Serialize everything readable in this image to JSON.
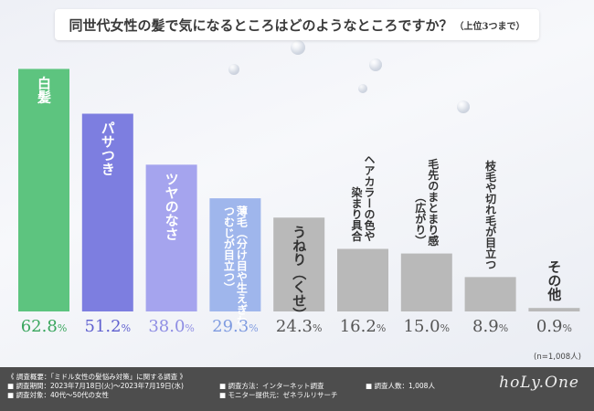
{
  "title": "同世代女性の髪で気になるところはどのようなところですか？",
  "title_note": "（上位3つまで）",
  "chart_data": {
    "type": "bar",
    "title": "同世代女性の髪で気になるところはどのようなところですか？（上位3つまで）",
    "categories": [
      "白髪",
      "パサつき",
      "ツヤのなさ",
      "薄毛（分け目や生えぎわ、つむじが目立つ）",
      "うねり（くせ）",
      "ヘアカラーの色や染まり具合",
      "毛先のまとまり感（広がり）",
      "枝毛や切れ毛が目立つ",
      "その他"
    ],
    "bar_labels": [
      [
        "白髪"
      ],
      [
        "パサつき"
      ],
      [
        "ツヤのなさ"
      ],
      [
        "薄毛（分け目や生えぎわ、",
        "つむじが目立つ）"
      ],
      [
        "うねり（くせ）"
      ],
      [
        "ヘアカラーの色や",
        "染まり具合"
      ],
      [
        "毛先のまとまり感",
        "（広がり）"
      ],
      [
        "枝毛や切れ毛が目立つ"
      ],
      [
        "その他"
      ]
    ],
    "values": [
      62.8,
      51.2,
      38.0,
      29.3,
      24.3,
      16.2,
      15.0,
      8.9,
      0.9
    ],
    "value_labels": [
      "62.8",
      "51.2",
      "38.0",
      "29.3",
      "24.3",
      "16.2",
      "15.0",
      "8.9",
      "0.9"
    ],
    "unit": "%",
    "ylim": [
      0,
      70
    ],
    "colors": [
      "#5dc47f",
      "#7d7ee0",
      "#a5a4ee",
      "#9fb6ec",
      "#b9b9b9",
      "#b9b9b9",
      "#b9b9b9",
      "#b9b9b9",
      "#b9b9b9"
    ],
    "value_colors": [
      "#3aa65e",
      "#5f60cf",
      "#8f8ee4",
      "#7f9be0",
      "#555555",
      "#555555",
      "#555555",
      "#555555",
      "#555555"
    ],
    "label_colors": [
      "#ffffff",
      "#ffffff",
      "#ffffff",
      "#ffffff",
      "#333333",
      "#333333",
      "#333333",
      "#333333",
      "#333333"
    ],
    "label_placement": [
      "inside",
      "inside",
      "inside",
      "inside",
      "inside",
      "above",
      "above",
      "above",
      "above"
    ],
    "grid": false,
    "legend": "none"
  },
  "sample_note": "(n=1,008人)",
  "footer": {
    "lines_left": [
      "《 調査概要：「ミドル女性の髪悩み対策」に関する調査 》",
      "■ 調査期間：2023年7月18日(火)～2023年7月19日(水)",
      "■ 調査対象：40代～50代の女性"
    ],
    "lines_mid": [
      "■ 調査方法：インターネット調査",
      "■ モニター提供元：ゼネラルリサーチ"
    ],
    "lines_right": [
      "■ 調査人数：1,008人"
    ],
    "logo": "hoLy.One"
  }
}
